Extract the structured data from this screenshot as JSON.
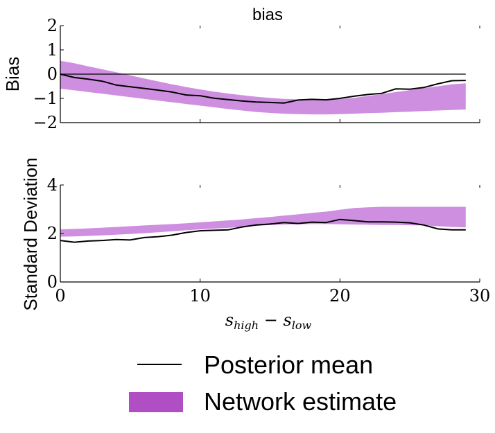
{
  "chart_data": [
    {
      "type": "area",
      "title": "bias",
      "ylabel": "Bias",
      "xlim": [
        0,
        30
      ],
      "ylim": [
        -2,
        2
      ],
      "yticks": [
        "2",
        "1",
        "0",
        "−1",
        "−2"
      ],
      "ytick_values": [
        2,
        1,
        0,
        -1,
        -2
      ],
      "x": [
        0,
        1,
        2,
        3,
        4,
        5,
        6,
        7,
        8,
        9,
        10,
        11,
        12,
        13,
        14,
        15,
        16,
        17,
        18,
        19,
        20,
        21,
        22,
        23,
        24,
        25,
        26,
        27,
        28,
        29
      ],
      "series": [
        {
          "name": "Network estimate",
          "kind": "band",
          "upper": [
            0.55,
            0.45,
            0.32,
            0.2,
            0.08,
            -0.05,
            -0.18,
            -0.3,
            -0.42,
            -0.53,
            -0.63,
            -0.72,
            -0.8,
            -0.87,
            -0.93,
            -0.98,
            -1.02,
            -1.04,
            -1.05,
            -1.05,
            -1.03,
            -0.98,
            -0.9,
            -0.82,
            -0.74,
            -0.66,
            -0.58,
            -0.5,
            -0.42,
            -0.38
          ],
          "lower": [
            -0.6,
            -0.67,
            -0.74,
            -0.81,
            -0.88,
            -0.95,
            -1.02,
            -1.09,
            -1.16,
            -1.23,
            -1.3,
            -1.37,
            -1.44,
            -1.5,
            -1.56,
            -1.6,
            -1.63,
            -1.65,
            -1.66,
            -1.66,
            -1.65,
            -1.63,
            -1.61,
            -1.59,
            -1.57,
            -1.55,
            -1.52,
            -1.5,
            -1.48,
            -1.46
          ]
        },
        {
          "name": "Posterior mean",
          "kind": "line",
          "values": [
            0.0,
            -0.14,
            -0.21,
            -0.29,
            -0.45,
            -0.52,
            -0.59,
            -0.66,
            -0.74,
            -0.86,
            -0.89,
            -0.99,
            -1.05,
            -1.11,
            -1.15,
            -1.17,
            -1.19,
            -1.07,
            -1.04,
            -1.06,
            -1.0,
            -0.91,
            -0.84,
            -0.79,
            -0.61,
            -0.62,
            -0.55,
            -0.4,
            -0.27,
            -0.26
          ]
        }
      ],
      "reference_line": 0
    },
    {
      "type": "area",
      "title": "",
      "ylabel": "Standard Deviation",
      "xlabel": "s_high − s_low",
      "xlim": [
        0,
        30
      ],
      "ylim": [
        0,
        4
      ],
      "xticks": [
        "0",
        "10",
        "20",
        "30"
      ],
      "xtick_values": [
        0,
        10,
        20,
        30
      ],
      "yticks": [
        "4",
        "2",
        "0"
      ],
      "ytick_values": [
        4,
        2,
        0
      ],
      "x": [
        0,
        1,
        2,
        3,
        4,
        5,
        6,
        7,
        8,
        9,
        10,
        11,
        12,
        13,
        14,
        15,
        16,
        17,
        18,
        19,
        20,
        21,
        22,
        23,
        24,
        25,
        26,
        27,
        28,
        29
      ],
      "series": [
        {
          "name": "Network estimate",
          "kind": "band",
          "upper": [
            2.17,
            2.19,
            2.21,
            2.24,
            2.27,
            2.3,
            2.33,
            2.36,
            2.39,
            2.42,
            2.46,
            2.5,
            2.54,
            2.58,
            2.63,
            2.68,
            2.74,
            2.79,
            2.85,
            2.9,
            2.98,
            3.05,
            3.08,
            3.1,
            3.1,
            3.1,
            3.1,
            3.1,
            3.1,
            3.1
          ],
          "lower": [
            1.87,
            1.88,
            1.9,
            1.92,
            1.95,
            1.98,
            2.01,
            2.05,
            2.09,
            2.13,
            2.17,
            2.2,
            2.23,
            2.27,
            2.31,
            2.35,
            2.37,
            2.38,
            2.39,
            2.39,
            2.38,
            2.37,
            2.36,
            2.35,
            2.35,
            2.34,
            2.33,
            2.3,
            2.27,
            2.25
          ]
        },
        {
          "name": "Posterior mean",
          "kind": "line",
          "values": [
            1.71,
            1.64,
            1.69,
            1.71,
            1.75,
            1.73,
            1.83,
            1.87,
            1.93,
            2.04,
            2.11,
            2.13,
            2.15,
            2.27,
            2.35,
            2.39,
            2.45,
            2.41,
            2.47,
            2.45,
            2.58,
            2.53,
            2.48,
            2.48,
            2.47,
            2.44,
            2.35,
            2.19,
            2.15,
            2.15
          ]
        }
      ]
    }
  ],
  "legend": {
    "items": [
      {
        "label": "Posterior mean",
        "kind": "line",
        "color": "#000000"
      },
      {
        "label": "Network estimate",
        "kind": "patch",
        "color": "#b04ec4"
      }
    ]
  },
  "colors": {
    "band_fill": "#cf8fe0",
    "legend_patch": "#b04ec4",
    "line": "#000000"
  }
}
